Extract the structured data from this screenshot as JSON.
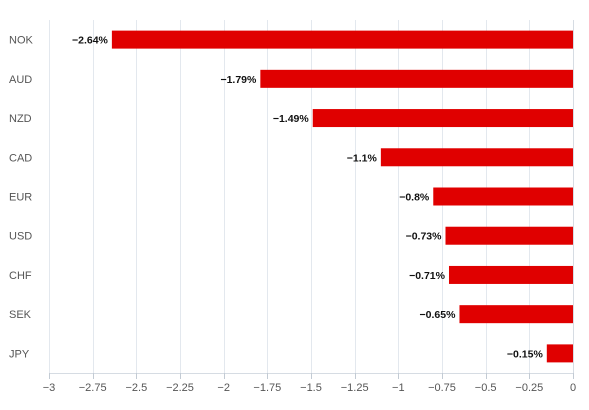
{
  "chart_data": {
    "type": "bar",
    "orientation": "horizontal",
    "categories": [
      "NOK",
      "AUD",
      "NZD",
      "CAD",
      "EUR",
      "USD",
      "CHF",
      "SEK",
      "JPY"
    ],
    "values": [
      -2.64,
      -1.79,
      -1.49,
      -1.1,
      -0.8,
      -0.73,
      -0.71,
      -0.65,
      -0.15
    ],
    "data_labels": [
      "−2.64%",
      "−1.79%",
      "−1.49%",
      "−1.1%",
      "−0.8%",
      "−0.73%",
      "−0.71%",
      "−0.65%",
      "−0.15%"
    ],
    "xlim": [
      -3,
      0
    ],
    "xticks": [
      -3,
      -2.75,
      -2.5,
      -2.25,
      -2,
      -1.75,
      -1.5,
      -1.25,
      -1,
      -0.75,
      -0.5,
      -0.25,
      0
    ],
    "xtick_labels": [
      "−3",
      "−2.75",
      "−2.5",
      "−2.25",
      "−2",
      "−1.75",
      "−1.5",
      "−1.25",
      "−1",
      "−0.75",
      "−0.5",
      "−0.25",
      "0"
    ],
    "bar_color": "#e00000",
    "grid": true,
    "title": "",
    "xlabel": "",
    "ylabel": ""
  }
}
